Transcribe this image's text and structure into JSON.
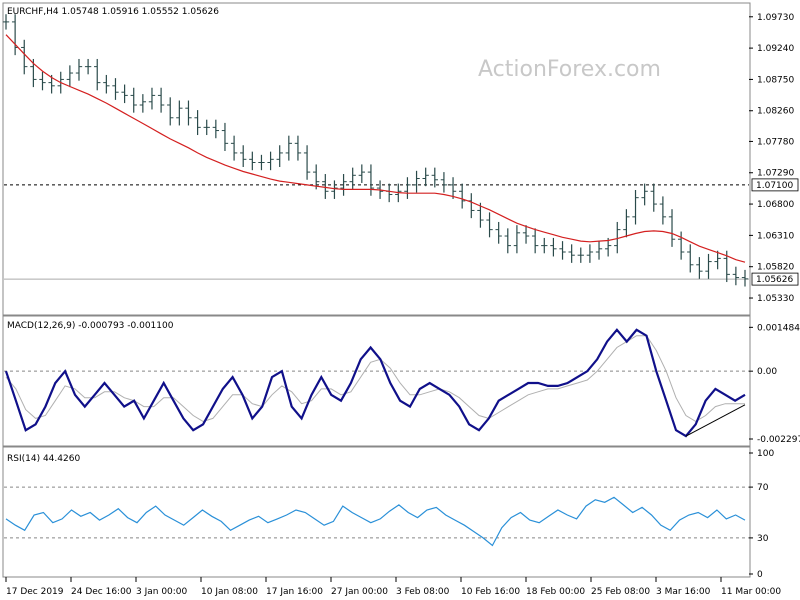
{
  "chart_data": {
    "type": "line",
    "watermark": "ActionForex.com",
    "x_ticks": [
      "17 Dec 2019",
      "24 Dec 16:00",
      "3 Jan 00:00",
      "10 Jan 08:00",
      "17 Jan 16:00",
      "27 Jan 00:00",
      "3 Feb 08:00",
      "10 Feb 16:00",
      "18 Feb 00:00",
      "25 Feb 08:00",
      "3 Mar 16:00",
      "11 Mar 00:00"
    ],
    "price_panel": {
      "title": "EURCHF,H4  1.05748 1.05916 1.05552 1.05626",
      "y_ticks": [
        "1.09730",
        "1.09240",
        "1.08750",
        "1.08260",
        "1.07780",
        "1.07290",
        "1.06800",
        "1.06310",
        "1.05820",
        "1.05330"
      ],
      "ylim": [
        1.0508,
        1.0993
      ],
      "level_line": {
        "value": 1.071,
        "label": "1.07100"
      },
      "current": {
        "value": 1.05626,
        "label": "1.05626"
      },
      "close": [
        1.0965,
        1.0925,
        1.0895,
        1.0875,
        1.087,
        1.0865,
        1.0875,
        1.0885,
        1.0895,
        1.0895,
        1.087,
        1.0865,
        1.0855,
        1.085,
        1.0835,
        1.084,
        1.085,
        1.0835,
        1.0815,
        1.083,
        1.0815,
        1.08,
        1.08,
        1.0795,
        1.0775,
        1.076,
        1.075,
        1.0745,
        1.0745,
        1.075,
        1.076,
        1.0775,
        1.076,
        1.073,
        1.0715,
        1.07,
        1.0705,
        1.0715,
        1.0725,
        1.073,
        1.0705,
        1.07,
        1.0695,
        1.07,
        1.071,
        1.072,
        1.0725,
        1.0718,
        1.071,
        1.07,
        1.0685,
        1.067,
        1.0655,
        1.064,
        1.063,
        1.0615,
        1.0635,
        1.063,
        1.0615,
        1.0615,
        1.061,
        1.0605,
        1.06,
        1.06,
        1.0605,
        1.061,
        1.0615,
        1.064,
        1.066,
        1.069,
        1.07,
        1.068,
        1.066,
        1.0625,
        1.0605,
        1.0585,
        1.0575,
        1.059,
        1.0595,
        1.057,
        1.0565,
        1.0563
      ],
      "ma": [
        1.0945,
        1.093,
        1.0915,
        1.09,
        1.0888,
        1.0878,
        1.087,
        1.0864,
        1.0858,
        1.0852,
        1.0845,
        1.0838,
        1.083,
        1.0822,
        1.0814,
        1.0806,
        1.0798,
        1.079,
        1.0782,
        1.0775,
        1.0768,
        1.076,
        1.0753,
        1.0747,
        1.0741,
        1.0736,
        1.0731,
        1.0727,
        1.0723,
        1.0719,
        1.0716,
        1.0714,
        1.0712,
        1.071,
        1.0708,
        1.0706,
        1.0704,
        1.0703,
        1.0703,
        1.0703,
        1.0703,
        1.0702,
        1.07,
        1.0698,
        1.0697,
        1.0697,
        1.0697,
        1.0697,
        1.0695,
        1.0692,
        1.0688,
        1.0683,
        1.0677,
        1.0671,
        1.0664,
        1.0657,
        1.065,
        1.0645,
        1.064,
        1.0636,
        1.0632,
        1.0628,
        1.0625,
        1.0622,
        1.0621,
        1.0622,
        1.0623,
        1.0626,
        1.063,
        1.0634,
        1.0637,
        1.0638,
        1.0637,
        1.0634,
        1.0628,
        1.0621,
        1.0614,
        1.0609,
        1.0604,
        1.0599,
        1.0593,
        1.0589
      ]
    },
    "macd_panel": {
      "title": "MACD(12,26,9) -0.000793 -0.001100",
      "y_ticks": [
        "0.001484",
        "0.00",
        "-0.002297"
      ],
      "ylim": [
        -0.0025,
        0.0018
      ],
      "macd": [
        0.0,
        -0.001,
        -0.002,
        -0.0018,
        -0.0012,
        -0.0004,
        0.0,
        -0.0008,
        -0.0012,
        -0.0008,
        -0.0004,
        -0.0008,
        -0.0012,
        -0.001,
        -0.0016,
        -0.001,
        -0.0004,
        -0.001,
        -0.0016,
        -0.002,
        -0.0018,
        -0.0012,
        -0.0006,
        -0.0002,
        -0.0008,
        -0.0016,
        -0.0012,
        -0.0002,
        0.0,
        -0.0012,
        -0.0016,
        -0.0008,
        -0.0002,
        -0.0008,
        -0.001,
        -0.0004,
        0.0004,
        0.0008,
        0.0004,
        -0.0004,
        -0.001,
        -0.0012,
        -0.0006,
        -0.0004,
        -0.0006,
        -0.0008,
        -0.0012,
        -0.0018,
        -0.002,
        -0.0016,
        -0.001,
        -0.0008,
        -0.0006,
        -0.0004,
        -0.0004,
        -0.0005,
        -0.0005,
        -0.0004,
        -0.0002,
        0.0,
        0.0004,
        0.001,
        0.0014,
        0.001,
        0.0014,
        0.0012,
        0.0,
        -0.001,
        -0.002,
        -0.0022,
        -0.0018,
        -0.001,
        -0.0006,
        -0.0008,
        -0.001,
        -0.0008
      ],
      "signal": [
        -0.0002,
        -0.0006,
        -0.0013,
        -0.0016,
        -0.0015,
        -0.001,
        -0.0005,
        -0.0006,
        -0.0009,
        -0.0009,
        -0.0007,
        -0.0007,
        -0.0009,
        -0.001,
        -0.0012,
        -0.0012,
        -0.0009,
        -0.0009,
        -0.0012,
        -0.0015,
        -0.0017,
        -0.0016,
        -0.0012,
        -0.0008,
        -0.0008,
        -0.0011,
        -0.0012,
        -0.0008,
        -0.0005,
        -0.0007,
        -0.0011,
        -0.001,
        -0.0006,
        -0.0006,
        -0.0008,
        -0.0007,
        -0.0002,
        0.0003,
        0.0004,
        0.0001,
        -0.0004,
        -0.0008,
        -0.0008,
        -0.0007,
        -0.0006,
        -0.0007,
        -0.0009,
        -0.0012,
        -0.0015,
        -0.0016,
        -0.0014,
        -0.0012,
        -0.001,
        -0.0008,
        -0.0007,
        -0.0006,
        -0.0006,
        -0.0005,
        -0.0004,
        -0.0003,
        0.0,
        0.0004,
        0.0008,
        0.001,
        0.0012,
        0.0012,
        0.0007,
        0.0,
        -0.0009,
        -0.0015,
        -0.0017,
        -0.0015,
        -0.0012,
        -0.0011,
        -0.0011,
        -0.0011
      ]
    },
    "rsi_panel": {
      "title": "RSI(14) 44.4260",
      "y_ticks": [
        "100",
        "70",
        "30",
        "0"
      ],
      "levels": [
        70,
        30
      ],
      "ylim": [
        0,
        100
      ],
      "rsi": [
        45,
        40,
        36,
        48,
        50,
        42,
        45,
        52,
        47,
        50,
        44,
        48,
        53,
        46,
        42,
        50,
        55,
        48,
        44,
        40,
        46,
        52,
        47,
        43,
        36,
        40,
        44,
        47,
        42,
        45,
        48,
        52,
        50,
        45,
        40,
        43,
        55,
        50,
        46,
        42,
        45,
        51,
        56,
        50,
        46,
        52,
        54,
        48,
        44,
        40,
        35,
        30,
        24,
        38,
        46,
        50,
        44,
        42,
        47,
        52,
        48,
        45,
        55,
        60,
        58,
        62,
        56,
        50,
        54,
        48,
        40,
        36,
        44,
        48,
        50,
        46,
        52,
        45,
        48,
        44
      ]
    }
  }
}
